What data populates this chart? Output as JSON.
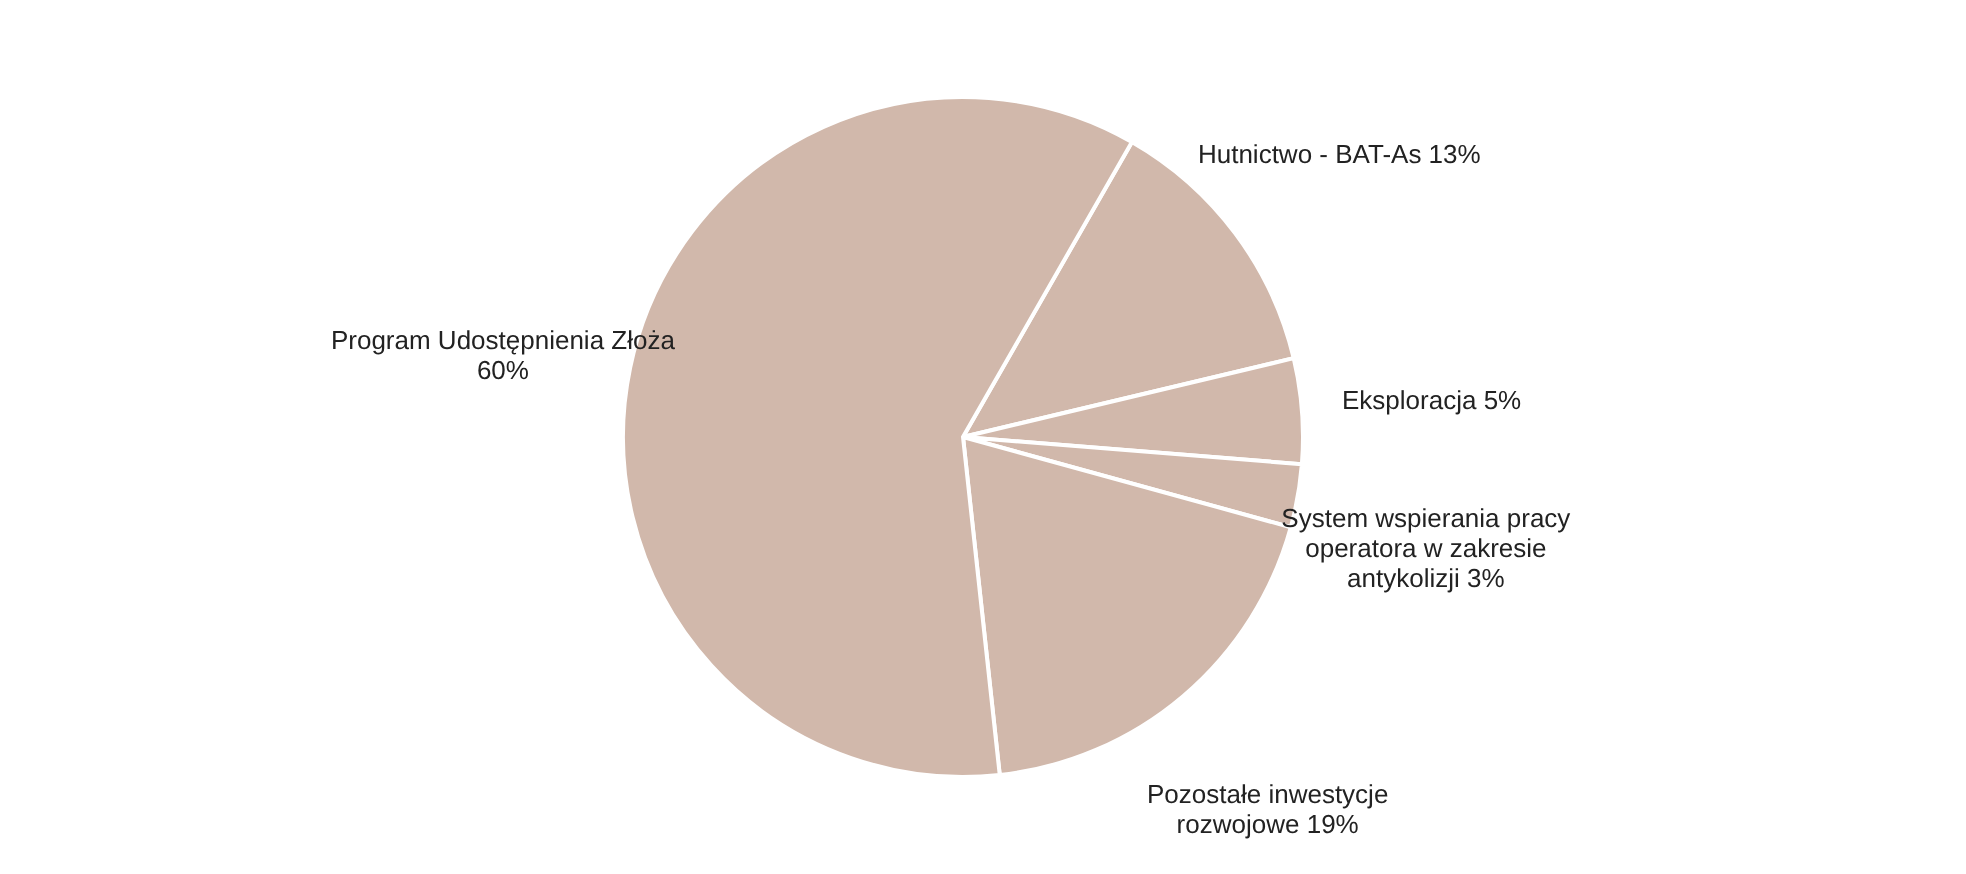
{
  "chart_data": {
    "type": "pie",
    "categories": [
      "Hutnictwo - BAT-As",
      "Eksploracja",
      "System wspierania pracy operatora w zakresie antykolizji",
      "Pozostałe inwestycje rozwojowe",
      "Program Udostępnienia Złoża"
    ],
    "values": [
      13,
      5,
      3,
      19,
      60
    ],
    "value_labels": [
      "13%",
      "5%",
      "3%",
      "19%",
      "60%"
    ],
    "colors": [
      "#d1b8ab",
      "#d1b8ab",
      "#d1b8ab",
      "#d1b8ab",
      "#d1b8ab"
    ],
    "legend": false
  }
}
